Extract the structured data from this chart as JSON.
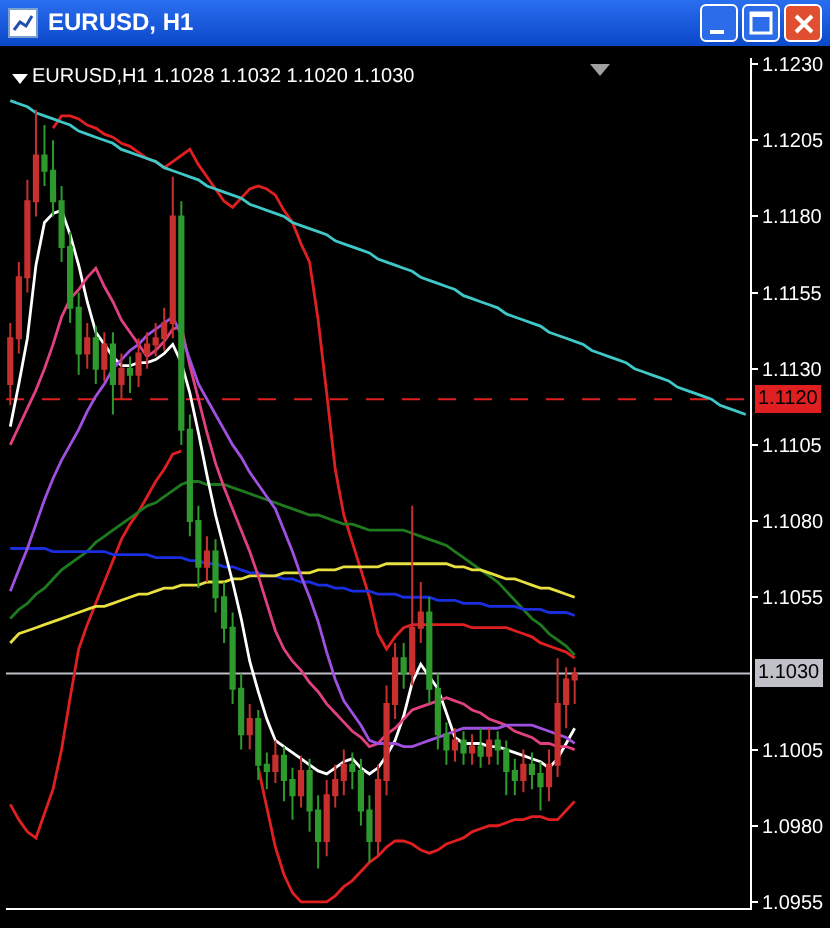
{
  "chart_data": {
    "type": "candlestick",
    "title": "EURUSD, H1",
    "subtitle": "EURUSD,H1 1.1028 1.1032 1.1020 1.1030",
    "categories": [
      null,
      null,
      null,
      null,
      null,
      null,
      null,
      null,
      null,
      null,
      null,
      null,
      null,
      null,
      null,
      null,
      null,
      null,
      null,
      null,
      null,
      null,
      null,
      null,
      null,
      null,
      null,
      null,
      null,
      null,
      null,
      null,
      null,
      null,
      null,
      null,
      null,
      null,
      null,
      null,
      null,
      null,
      null,
      null,
      null,
      null,
      null,
      null,
      null,
      null,
      null,
      null,
      null,
      null,
      null,
      null,
      null,
      null,
      null,
      null,
      null,
      null,
      null,
      null,
      null,
      null,
      null,
      null,
      null,
      null,
      null,
      null,
      null,
      null,
      null,
      null,
      null,
      null,
      null,
      null,
      null,
      null,
      null,
      null,
      null,
      null,
      null
    ],
    "ylim": [
      1.0953,
      1.1232
    ],
    "yticks": [
      {
        "value": 1.123,
        "label": "1.1230"
      },
      {
        "value": 1.1205,
        "label": "1.1205"
      },
      {
        "value": 1.118,
        "label": "1.1180"
      },
      {
        "value": 1.1155,
        "label": "1.1155"
      },
      {
        "value": 1.113,
        "label": "1.1130"
      },
      {
        "value": 1.1105,
        "label": "1.1105"
      },
      {
        "value": 1.108,
        "label": "1.1080"
      },
      {
        "value": 1.1055,
        "label": "1.1055"
      },
      {
        "value": 1.1005,
        "label": "1.1005"
      },
      {
        "value": 1.098,
        "label": "1.0980"
      },
      {
        "value": 1.0955,
        "label": "1.0955"
      }
    ],
    "tick_labels": "y",
    "ref_lines": [
      {
        "axis": "y",
        "value": 1.112,
        "label": "1.1120",
        "color": "#e02020",
        "line_style": "dashed"
      },
      {
        "axis": "y",
        "value": 1.103,
        "label": "1.1030",
        "color": "#c0c0c8",
        "line_style": "solid"
      }
    ],
    "series": [
      {
        "type": "line",
        "color": "#e02020",
        "values": [
          null,
          null,
          null,
          null,
          null,
          1.1209,
          1.1213,
          1.1213,
          1.1212,
          1.121,
          1.1209,
          1.1207,
          1.1206,
          1.1204,
          1.1203,
          1.1201,
          1.1199,
          1.1198,
          1.1196,
          1.1198,
          1.12,
          1.1202,
          1.1197,
          1.1193,
          1.1189,
          1.1185,
          1.1183,
          1.1186,
          1.1189,
          1.119,
          1.1189,
          1.1187,
          1.1182,
          1.1178,
          1.1171,
          1.1165,
          1.1146,
          1.1122,
          1.1097,
          1.1082,
          1.1073,
          1.1064,
          1.1055,
          1.1043,
          1.1038,
          1.1042,
          1.1045,
          1.1046,
          1.1046,
          1.1046,
          1.1046,
          1.1046,
          1.1046,
          1.1046,
          1.1045,
          1.1045,
          1.1045,
          1.1045,
          1.1045,
          1.1044,
          1.1043,
          1.1042,
          1.104,
          1.1039,
          1.1038,
          1.1037,
          1.1035,
          null,
          null,
          null,
          null,
          null,
          null,
          null,
          null,
          null,
          null,
          null,
          null,
          null,
          null,
          null,
          null,
          null,
          null,
          null,
          null
        ]
      },
      {
        "type": "line",
        "color": "#e02020",
        "values": [
          1.0987,
          1.0982,
          1.0978,
          1.0976,
          1.0984,
          1.0992,
          1.1005,
          1.1022,
          1.1038,
          1.1046,
          1.1053,
          1.106,
          1.1067,
          1.1074,
          1.1079,
          1.1083,
          1.1088,
          1.1093,
          1.1097,
          1.1102,
          1.1103,
          null,
          null,
          null,
          null,
          null,
          null,
          null,
          null,
          1.0999,
          1.0986,
          1.0973,
          1.0964,
          1.0958,
          1.0955,
          1.0955,
          1.0955,
          1.0955,
          1.0957,
          1.096,
          1.0962,
          1.0965,
          1.0968,
          1.097,
          1.0973,
          1.0975,
          1.0975,
          1.0974,
          1.0972,
          1.0971,
          1.0972,
          1.0974,
          1.0975,
          1.0976,
          1.0978,
          1.0979,
          1.098,
          1.098,
          1.0981,
          1.0982,
          1.0982,
          1.0983,
          1.0983,
          1.0982,
          1.0982,
          1.0985,
          1.0988,
          null,
          null,
          null,
          null,
          null,
          null,
          null,
          null,
          null,
          null,
          null,
          null,
          null,
          null,
          null,
          null,
          null,
          null,
          null,
          null
        ]
      },
      {
        "type": "line",
        "color": "#1f7a1f",
        "values": [
          1.1048,
          1.1051,
          1.1053,
          1.1056,
          1.1058,
          1.1061,
          1.1064,
          1.1066,
          1.1068,
          1.107,
          1.1073,
          1.1075,
          1.1077,
          1.1079,
          1.1081,
          1.1083,
          1.1085,
          1.1086,
          1.1088,
          1.109,
          1.1092,
          1.1093,
          1.1093,
          1.1092,
          1.1092,
          1.1092,
          1.1091,
          1.109,
          1.1089,
          1.1088,
          1.1087,
          1.1086,
          1.1085,
          1.1084,
          1.1083,
          1.1082,
          1.1082,
          1.1081,
          1.108,
          1.1079,
          1.1079,
          1.1078,
          1.1077,
          1.1077,
          1.1077,
          1.1077,
          1.1077,
          1.1076,
          1.1075,
          1.1074,
          1.1073,
          1.1072,
          1.107,
          1.1068,
          1.1066,
          1.1064,
          1.1062,
          1.106,
          1.1057,
          1.1054,
          1.1051,
          1.1048,
          1.1046,
          1.1043,
          1.1041,
          1.1039,
          1.1036,
          null,
          null,
          null,
          null,
          null,
          null,
          null,
          null,
          null,
          null,
          null,
          null,
          null,
          null,
          null,
          null,
          null,
          null,
          null,
          null
        ]
      },
      {
        "type": "line",
        "color": "#1a2ee0",
        "values": [
          1.1071,
          1.1071,
          1.1071,
          1.1071,
          1.1071,
          1.107,
          1.107,
          1.107,
          1.107,
          1.107,
          1.107,
          1.107,
          1.1069,
          1.1069,
          1.1069,
          1.1069,
          1.1069,
          1.1068,
          1.1068,
          1.1068,
          1.1068,
          1.1067,
          1.1067,
          1.1066,
          1.1066,
          1.1065,
          1.1065,
          1.1064,
          1.1063,
          1.1063,
          1.1062,
          1.1062,
          1.1061,
          1.1061,
          1.106,
          1.106,
          1.1059,
          1.1059,
          1.1058,
          1.1058,
          1.1057,
          1.1057,
          1.1057,
          1.1056,
          1.1056,
          1.1056,
          1.1055,
          1.1055,
          1.1055,
          1.1055,
          1.1054,
          1.1054,
          1.1054,
          1.1053,
          1.1053,
          1.1053,
          1.1052,
          1.1052,
          1.1052,
          1.1052,
          1.1051,
          1.1051,
          1.1051,
          1.105,
          1.105,
          1.105,
          1.1049,
          null,
          null,
          null,
          null,
          null,
          null,
          null,
          null,
          null,
          null,
          null,
          null,
          null,
          null,
          null,
          null,
          null,
          null,
          null,
          null
        ]
      },
      {
        "type": "line",
        "color": "#e8e040",
        "values": [
          1.104,
          1.1043,
          1.1044,
          1.1045,
          1.1046,
          1.1047,
          1.1048,
          1.1049,
          1.105,
          1.1051,
          1.1052,
          1.1052,
          1.1053,
          1.1054,
          1.1055,
          1.1056,
          1.1056,
          1.1057,
          1.1058,
          1.1058,
          1.1059,
          1.1059,
          1.1059,
          1.106,
          1.106,
          1.106,
          1.1061,
          1.1061,
          1.1062,
          1.1062,
          1.1062,
          1.1062,
          1.1063,
          1.1063,
          1.1063,
          1.1063,
          1.1064,
          1.1064,
          1.1064,
          1.1065,
          1.1065,
          1.1065,
          1.1065,
          1.1065,
          1.1066,
          1.1066,
          1.1066,
          1.1066,
          1.1066,
          1.1066,
          1.1066,
          1.1066,
          1.1065,
          1.1065,
          1.1064,
          1.1064,
          1.1063,
          1.1062,
          1.1061,
          1.1061,
          1.106,
          1.1059,
          1.1058,
          1.1058,
          1.1057,
          1.1056,
          1.1055,
          null,
          null,
          null,
          null,
          null,
          null,
          null,
          null,
          null,
          null,
          null,
          null,
          null,
          null,
          null,
          null,
          null,
          null,
          null,
          null
        ]
      },
      {
        "type": "line",
        "color": "#ffffff",
        "values": [
          1.1111,
          1.1125,
          1.114,
          1.1164,
          1.1178,
          1.1181,
          1.1182,
          1.1174,
          1.1164,
          1.1152,
          1.1142,
          1.1138,
          1.1134,
          1.1131,
          1.1131,
          1.1132,
          1.1132,
          1.1133,
          1.1135,
          1.1138,
          1.1132,
          1.1122,
          1.1109,
          1.1095,
          1.1082,
          1.1071,
          1.106,
          1.1048,
          1.1034,
          1.1024,
          1.1015,
          1.1008,
          1.1006,
          1.1004,
          1.1002,
          1.1,
          1.0998,
          1.0997,
          1.0999,
          1.1001,
          1.1002,
          1.0999,
          1.0997,
          1.0999,
          1.1003,
          1.1008,
          1.1016,
          1.1027,
          1.1033,
          1.1029,
          1.1025,
          1.1017,
          1.1009,
          1.1007,
          1.1007,
          1.1007,
          1.1006,
          1.1006,
          1.1005,
          1.1004,
          1.1003,
          1.1002,
          1.1001,
          1.0999,
          1.1002,
          1.1007,
          1.1012,
          null,
          null,
          null,
          null,
          null,
          null,
          null,
          null,
          null,
          null,
          null,
          null,
          null,
          null,
          null,
          null,
          null,
          null,
          null,
          null
        ]
      },
      {
        "type": "line",
        "color": "#e04080",
        "values": [
          1.1105,
          1.1111,
          1.1117,
          1.1123,
          1.113,
          1.1138,
          1.1147,
          1.1153,
          1.1156,
          1.116,
          1.1163,
          1.1157,
          1.1152,
          1.1146,
          1.1142,
          1.1138,
          1.1134,
          1.1136,
          1.1139,
          1.1143,
          1.1144,
          1.1131,
          1.112,
          1.1109,
          1.1099,
          1.1091,
          1.1084,
          1.1077,
          1.107,
          1.1062,
          1.1053,
          1.1044,
          1.1038,
          1.1034,
          1.1031,
          1.1027,
          1.1024,
          1.102,
          1.1017,
          1.1014,
          1.1011,
          1.1009,
          1.1006,
          1.1007,
          1.101,
          1.1012,
          1.1015,
          1.1018,
          1.1019,
          1.102,
          1.1021,
          1.1022,
          1.1021,
          1.102,
          1.1018,
          1.1017,
          1.1015,
          1.1014,
          1.1013,
          1.1011,
          1.101,
          1.1009,
          1.1007,
          1.1007,
          1.1006,
          1.1006,
          1.1005,
          null,
          null,
          null,
          null,
          null,
          null,
          null,
          null,
          null,
          null,
          null,
          null,
          null,
          null,
          null,
          null,
          null,
          null,
          null,
          null
        ]
      },
      {
        "type": "line",
        "color": "#a050e0",
        "values": [
          1.1057,
          1.1064,
          1.1071,
          1.1079,
          1.1087,
          1.1094,
          1.11,
          1.1105,
          1.111,
          1.1116,
          1.1121,
          1.1125,
          1.113,
          1.1133,
          1.1136,
          1.1138,
          1.1141,
          1.1143,
          1.1145,
          1.1147,
          1.1141,
          1.1133,
          1.1125,
          1.112,
          1.1115,
          1.111,
          1.1105,
          1.1101,
          1.1096,
          1.1092,
          1.1088,
          1.1084,
          1.1077,
          1.107,
          1.1062,
          1.1055,
          1.1047,
          1.1037,
          1.1028,
          1.1021,
          1.1017,
          1.1013,
          1.1008,
          1.1007,
          1.1007,
          1.1007,
          1.1006,
          1.1006,
          1.1007,
          1.1008,
          1.1009,
          1.101,
          1.1011,
          1.1012,
          1.1012,
          1.1012,
          1.1012,
          1.1012,
          1.1013,
          1.1013,
          1.1013,
          1.1013,
          1.1012,
          1.1011,
          1.101,
          1.1009,
          1.1007,
          null,
          null,
          null,
          null,
          null,
          null,
          null,
          null,
          null,
          null,
          null,
          null,
          null,
          null,
          null,
          null,
          null,
          null,
          null,
          null
        ]
      },
      {
        "type": "line",
        "color": "#40c8c8",
        "values": [
          1.1218,
          1.1217,
          1.1216,
          1.1214,
          1.1213,
          1.1212,
          1.1211,
          1.121,
          1.1208,
          1.1207,
          1.1206,
          1.1205,
          1.1204,
          1.1202,
          1.1201,
          1.12,
          1.1199,
          1.1198,
          1.1196,
          1.1195,
          1.1194,
          1.1193,
          1.1192,
          1.119,
          1.1189,
          1.1188,
          1.1187,
          1.1186,
          1.1184,
          1.1183,
          1.1182,
          1.1181,
          1.118,
          1.1178,
          1.1177,
          1.1176,
          1.1175,
          1.1174,
          1.1172,
          1.1171,
          1.117,
          1.1169,
          1.1168,
          1.1166,
          1.1165,
          1.1164,
          1.1163,
          1.1162,
          1.116,
          1.1159,
          1.1158,
          1.1157,
          1.1156,
          1.1154,
          1.1153,
          1.1152,
          1.1151,
          1.115,
          1.1148,
          1.1147,
          1.1146,
          1.1145,
          1.1144,
          1.1142,
          1.1141,
          1.114,
          1.1139,
          1.1138,
          1.1136,
          1.1135,
          1.1134,
          1.1133,
          1.1132,
          1.113,
          1.1129,
          1.1128,
          1.1127,
          1.1126,
          1.1124,
          1.1123,
          1.1122,
          1.1121,
          1.112,
          1.1118,
          1.1117,
          1.1116,
          1.1115
        ]
      },
      {
        "colors": [
          "#c83030",
          "#c83030",
          "#c83030",
          "#c83030",
          "#2e9a2e",
          "#2e9a2e",
          "#2e9a2e",
          "#2e9a2e",
          "#2e9a2e",
          "#c83030",
          "#2e9a2e",
          "#c83030",
          "#2e9a2e",
          "#c83030",
          "#2e9a2e",
          "#c83030",
          "#c83030",
          "#c83030",
          "#c83030",
          "#c83030",
          "#2e9a2e",
          "#2e9a2e",
          "#2e9a2e",
          "#c83030",
          "#2e9a2e",
          "#2e9a2e",
          "#2e9a2e",
          "#2e9a2e",
          "#c83030",
          "#2e9a2e",
          "#2e9a2e",
          "#c83030",
          "#2e9a2e",
          "#2e9a2e",
          "#c83030",
          "#2e9a2e",
          "#2e9a2e",
          "#c83030",
          "#c83030",
          "#c83030",
          "#2e9a2e",
          "#2e9a2e",
          "#2e9a2e",
          "#c83030",
          "#c83030",
          "#c83030",
          "#2e9a2e",
          "#c83030",
          "#c83030",
          "#2e9a2e",
          "#2e9a2e",
          "#2e9a2e",
          "#c83030",
          "#2e9a2e",
          "#c83030",
          "#2e9a2e",
          "#c83030",
          "#2e9a2e",
          "#2e9a2e",
          "#2e9a2e",
          "#c83030",
          "#2e9a2e",
          "#2e9a2e",
          "#c83030",
          "#c83030",
          "#c83030",
          "#c83030",
          null,
          null,
          null,
          null,
          null,
          null,
          null,
          null,
          null,
          null,
          null,
          null,
          null,
          null,
          null,
          null,
          null,
          null,
          null,
          null
        ],
        "ohlc": [
          [
            1.1125,
            1.1145,
            1.1118,
            1.114
          ],
          [
            1.114,
            1.1165,
            1.1135,
            1.116
          ],
          [
            1.116,
            1.1192,
            1.1155,
            1.1185
          ],
          [
            1.1185,
            1.1215,
            1.118,
            1.12
          ],
          [
            1.12,
            1.121,
            1.119,
            1.1195
          ],
          [
            1.1195,
            1.1205,
            1.118,
            1.1185
          ],
          [
            1.1185,
            1.119,
            1.1165,
            1.117
          ],
          [
            1.117,
            1.1175,
            1.1145,
            1.115
          ],
          [
            1.115,
            1.1155,
            1.1128,
            1.1135
          ],
          [
            1.1135,
            1.1145,
            1.113,
            1.114
          ],
          [
            1.114,
            1.1144,
            1.1125,
            1.113
          ],
          [
            1.113,
            1.1142,
            1.1126,
            1.1138
          ],
          [
            1.1138,
            1.1142,
            1.1115,
            1.1125
          ],
          [
            1.1125,
            1.1135,
            1.112,
            1.113
          ],
          [
            1.113,
            1.1134,
            1.1122,
            1.1128
          ],
          [
            1.1128,
            1.114,
            1.1124,
            1.1135
          ],
          [
            1.1135,
            1.1142,
            1.113,
            1.1138
          ],
          [
            1.1138,
            1.1145,
            1.1134,
            1.114
          ],
          [
            1.114,
            1.115,
            1.1136,
            1.1145
          ],
          [
            1.1145,
            1.1193,
            1.114,
            1.118
          ],
          [
            1.118,
            1.1185,
            1.1105,
            1.111
          ],
          [
            1.111,
            1.1115,
            1.1075,
            1.108
          ],
          [
            1.108,
            1.1085,
            1.1058,
            1.1065
          ],
          [
            1.1065,
            1.1075,
            1.106,
            1.107
          ],
          [
            1.107,
            1.1074,
            1.105,
            1.1055
          ],
          [
            1.1055,
            1.106,
            1.104,
            1.1045
          ],
          [
            1.1045,
            1.105,
            1.102,
            1.1025
          ],
          [
            1.1025,
            1.103,
            1.1005,
            1.101
          ],
          [
            1.101,
            1.102,
            1.1005,
            1.1015
          ],
          [
            1.1015,
            1.1018,
            1.0995,
            1.1
          ],
          [
            1.1,
            1.1004,
            1.0992,
            1.0998
          ],
          [
            1.0998,
            1.1008,
            1.0994,
            1.1003
          ],
          [
            1.1003,
            1.1006,
            1.0988,
            1.0995
          ],
          [
            1.0995,
            1.0999,
            1.0982,
            1.099
          ],
          [
            1.099,
            1.1003,
            1.0986,
            1.0998
          ],
          [
            1.0998,
            1.1002,
            1.0978,
            1.0985
          ],
          [
            1.0985,
            1.099,
            1.0966,
            1.0975
          ],
          [
            1.0975,
            1.0995,
            1.097,
            1.099
          ],
          [
            1.099,
            1.1,
            1.0986,
            1.0995
          ],
          [
            1.0995,
            1.1005,
            1.099,
            1.1
          ],
          [
            1.1,
            1.1004,
            1.0992,
            1.0998
          ],
          [
            1.0998,
            1.1002,
            1.098,
            1.0985
          ],
          [
            1.0985,
            1.099,
            1.0968,
            1.0975
          ],
          [
            1.0975,
            1.1,
            1.097,
            1.0995
          ],
          [
            1.0995,
            1.1026,
            1.099,
            1.102
          ],
          [
            1.102,
            1.104,
            1.1015,
            1.1035
          ],
          [
            1.1035,
            1.104,
            1.1025,
            1.103
          ],
          [
            1.103,
            1.1085,
            1.1026,
            1.1045
          ],
          [
            1.1045,
            1.106,
            1.104,
            1.105
          ],
          [
            1.105,
            1.1055,
            1.102,
            1.1025
          ],
          [
            1.1025,
            1.103,
            1.1005,
            1.101
          ],
          [
            1.101,
            1.1014,
            1.1,
            1.1005
          ],
          [
            1.1005,
            1.1012,
            1.1001,
            1.1008
          ],
          [
            1.1008,
            1.1011,
            1.1,
            1.1004
          ],
          [
            1.1004,
            1.101,
            1.1,
            1.1006
          ],
          [
            1.1006,
            1.1012,
            1.0999,
            1.1003
          ],
          [
            1.1003,
            1.1012,
            1.1,
            1.1008
          ],
          [
            1.1008,
            1.1011,
            1.1,
            1.1005
          ],
          [
            1.1005,
            1.1008,
            1.099,
            1.0998
          ],
          [
            1.0998,
            1.1002,
            1.099,
            1.0995
          ],
          [
            1.0995,
            1.1005,
            1.0991,
            1.1
          ],
          [
            1.1,
            1.1004,
            1.0992,
            1.0997
          ],
          [
            1.0997,
            1.1001,
            1.0985,
            1.0993
          ],
          [
            1.0993,
            1.1005,
            1.0988,
            1.1
          ],
          [
            1.1,
            1.1035,
            1.0996,
            1.102
          ],
          [
            1.102,
            1.1032,
            1.1012,
            1.1028
          ],
          [
            1.1028,
            1.1032,
            1.102,
            1.103
          ],
          null,
          null,
          null,
          null,
          null,
          null,
          null,
          null,
          null,
          null,
          null,
          null,
          null,
          null,
          null,
          null,
          null,
          null,
          null,
          null
        ]
      }
    ]
  }
}
